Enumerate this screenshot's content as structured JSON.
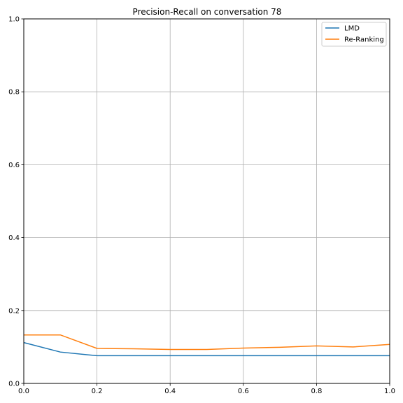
{
  "chart_data": {
    "type": "line",
    "title": "Precision-Recall on conversation 78",
    "xlabel": "",
    "ylabel": "",
    "xlim": [
      0.0,
      1.0
    ],
    "ylim": [
      0.0,
      1.0
    ],
    "grid": true,
    "legend_position": "top-right",
    "x_ticks": [
      "0.0",
      "0.2",
      "0.4",
      "0.6",
      "0.8",
      "1.0"
    ],
    "y_ticks": [
      "0.0",
      "0.2",
      "0.4",
      "0.6",
      "0.8",
      "1.0"
    ],
    "x_tick_values": [
      0.0,
      0.2,
      0.4,
      0.6,
      0.8,
      1.0
    ],
    "y_tick_values": [
      0.0,
      0.2,
      0.4,
      0.6,
      0.8,
      1.0
    ],
    "x": [
      0.0,
      0.1,
      0.2,
      0.3,
      0.4,
      0.5,
      0.6,
      0.7,
      0.8,
      0.9,
      1.0
    ],
    "series": [
      {
        "name": "LMD",
        "color": "#1f77b4",
        "values": [
          0.112,
          0.086,
          0.076,
          0.076,
          0.076,
          0.076,
          0.076,
          0.076,
          0.076,
          0.076,
          0.076
        ]
      },
      {
        "name": "Re-Ranking",
        "color": "#ff7f0e",
        "values": [
          0.133,
          0.133,
          0.096,
          0.095,
          0.093,
          0.093,
          0.097,
          0.099,
          0.103,
          0.1,
          0.107
        ]
      }
    ]
  }
}
